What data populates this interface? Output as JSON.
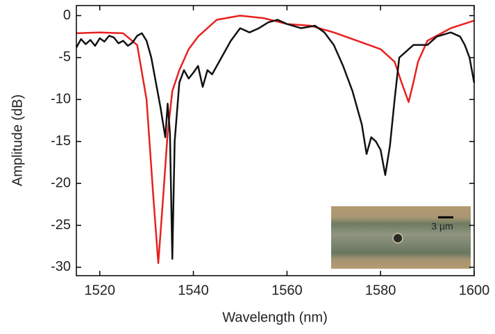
{
  "chart_data": {
    "type": "line",
    "xlabel": "Wavelength (nm)",
    "ylabel": "Amplitude (dB)",
    "xlim": [
      1515,
      1600
    ],
    "xticks": [
      1520,
      1540,
      1560,
      1580,
      1600
    ],
    "ylim": [
      -31,
      1.2
    ],
    "yticks": [
      0,
      -5,
      -10,
      -15,
      -20,
      -25,
      -30
    ],
    "series": [
      {
        "color": "#e8201e",
        "x": [
          1515,
          1520,
          1525,
          1528,
          1530,
          1531.5,
          1532.5,
          1533.5,
          1534.5,
          1535.5,
          1537,
          1539,
          1541,
          1545,
          1550,
          1555,
          1560,
          1565,
          1570,
          1575,
          1580,
          1583,
          1584.5,
          1586,
          1587,
          1588,
          1590,
          1595,
          1600
        ],
        "values": [
          -2.1,
          -2.0,
          -2.1,
          -3.5,
          -10,
          -22,
          -29.5,
          -22,
          -14,
          -9,
          -6.5,
          -4,
          -2.5,
          -0.5,
          0,
          -0.3,
          -1,
          -1.2,
          -2,
          -3,
          -4,
          -5.5,
          -8,
          -10.3,
          -8,
          -5.5,
          -3,
          -1.5,
          -0.6
        ]
      },
      {
        "color": "#111111",
        "x": [
          1515,
          1516,
          1517,
          1518,
          1519,
          1520,
          1521,
          1522,
          1523,
          1524,
          1525,
          1526,
          1527,
          1528,
          1529,
          1530,
          1531,
          1532,
          1533,
          1534,
          1534.5,
          1535,
          1535.5,
          1536,
          1537,
          1538,
          1539,
          1540,
          1541,
          1542,
          1543,
          1544,
          1546,
          1548,
          1550,
          1552,
          1554,
          1556,
          1558,
          1560,
          1563,
          1566,
          1568,
          1570,
          1572,
          1574,
          1576,
          1577,
          1578,
          1579,
          1580,
          1581,
          1582,
          1583,
          1584,
          1585,
          1587,
          1590,
          1592,
          1595,
          1597,
          1598,
          1599,
          1600
        ],
        "values": [
          -3.8,
          -2.8,
          -3.4,
          -2.9,
          -3.6,
          -2.7,
          -3.1,
          -2.4,
          -2.6,
          -3.3,
          -3.0,
          -3.6,
          -3.2,
          -2.4,
          -2.1,
          -3.0,
          -5,
          -8,
          -11,
          -14.5,
          -10.5,
          -14,
          -29,
          -15,
          -8,
          -6.5,
          -7.5,
          -6.8,
          -6,
          -8.5,
          -6.5,
          -7,
          -5,
          -3,
          -1.5,
          -2,
          -1.5,
          -0.8,
          -0.5,
          -1,
          -1.5,
          -1.2,
          -2,
          -3.5,
          -6,
          -9,
          -13,
          -16.5,
          -14.5,
          -15,
          -16,
          -19,
          -15.5,
          -10,
          -5,
          -4.5,
          -3.5,
          -3.5,
          -2.5,
          -2,
          -2.5,
          -3.5,
          -5,
          -8
        ]
      }
    ],
    "inset_label": "3 µm"
  }
}
